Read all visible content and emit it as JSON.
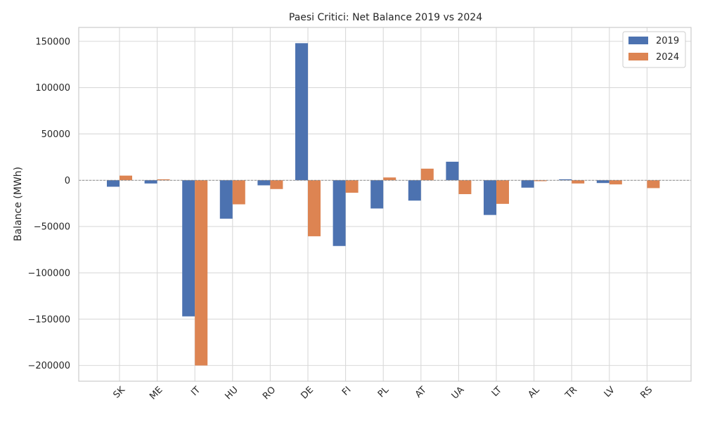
{
  "chart_data": {
    "type": "bar",
    "title": "Paesi Critici: Net Balance 2019 vs 2024",
    "xlabel": "",
    "ylabel": "Balance (MWh)",
    "categories": [
      "SK",
      "ME",
      "IT",
      "HU",
      "RO",
      "DE",
      "FI",
      "PL",
      "AT",
      "UA",
      "LT",
      "AL",
      "TR",
      "LV",
      "RS"
    ],
    "series": [
      {
        "name": "2019",
        "color": "#4c72b0",
        "values": [
          -7000,
          -3500,
          -147000,
          -41500,
          -5500,
          148000,
          -71000,
          -30500,
          -22000,
          20000,
          -37500,
          -8000,
          1000,
          -3000,
          0
        ]
      },
      {
        "name": "2024",
        "color": "#dd8452",
        "values": [
          5000,
          1000,
          -200000,
          -26000,
          -9500,
          -60500,
          -13500,
          3000,
          12500,
          -15000,
          -25500,
          -1000,
          -3500,
          -4500,
          -8500
        ]
      }
    ],
    "ylim": [
      -217000,
      165000
    ],
    "yticks": [
      -200000,
      -150000,
      -100000,
      -50000,
      0,
      50000,
      100000,
      150000
    ],
    "ytick_labels": [
      "−200000",
      "−150000",
      "−100000",
      "−50000",
      "0",
      "50000",
      "100000",
      "150000"
    ],
    "grid": true,
    "zero_line": true,
    "legend_position": "top-right",
    "legend_entries": [
      "2019",
      "2024"
    ]
  }
}
